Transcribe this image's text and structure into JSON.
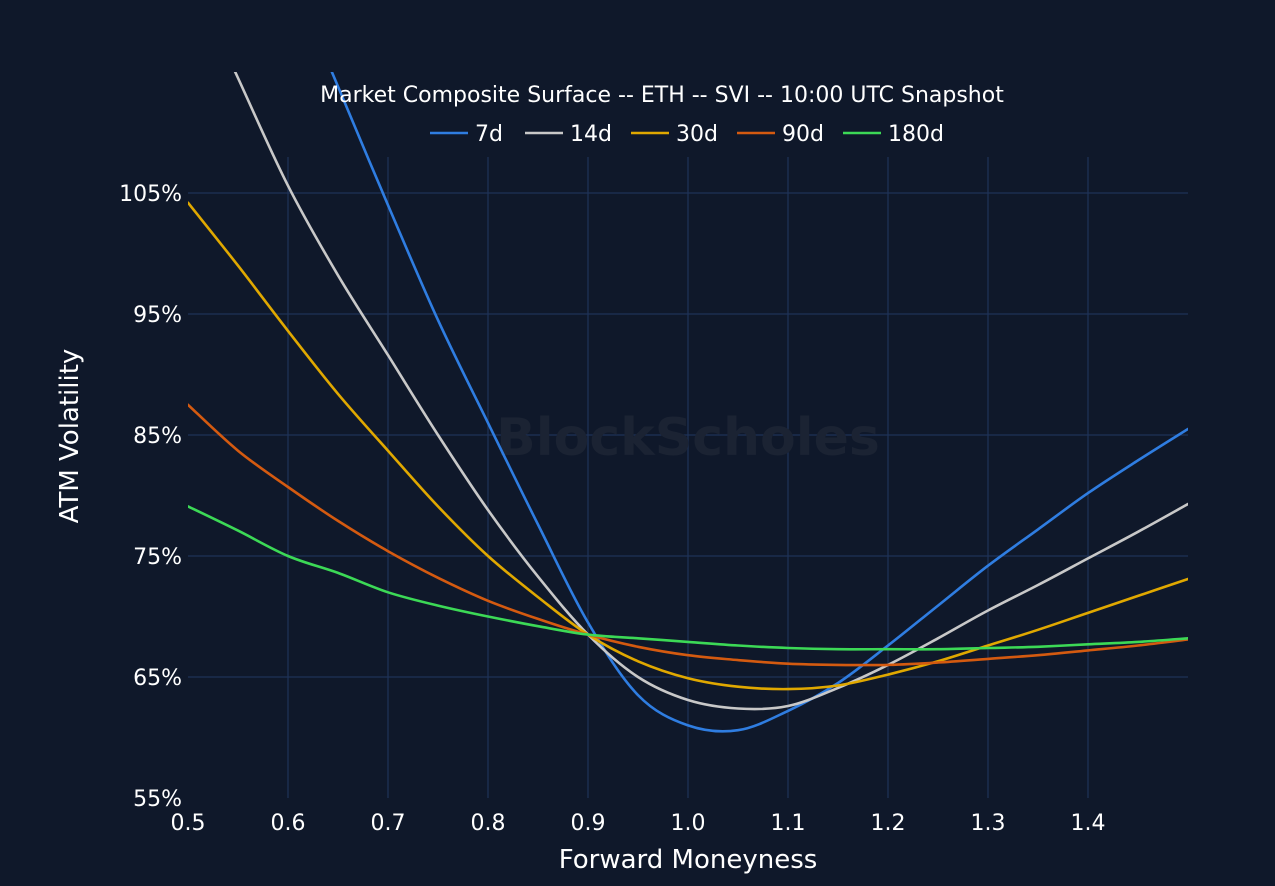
{
  "chart_data": {
    "type": "line",
    "title": "Market Composite Surface -- ETH -- SVI -- 10:00 UTC Snapshot",
    "xlabel": "Forward Moneyness",
    "ylabel": "ATM Volatility",
    "watermark": "BlockScholes",
    "xlim": [
      0.5,
      1.5
    ],
    "ylim": [
      55,
      115
    ],
    "x_ticks": [
      0.5,
      0.6,
      0.7,
      0.8,
      0.9,
      1.0,
      1.1,
      1.2,
      1.3,
      1.4
    ],
    "x_tick_labels": [
      "0.5",
      "0.6",
      "0.7",
      "0.8",
      "0.9",
      "1.0",
      "1.1",
      "1.2",
      "1.3",
      "1.4"
    ],
    "y_ticks": [
      55,
      65,
      75,
      85,
      95,
      105
    ],
    "y_tick_labels": [
      "55%",
      "65%",
      "75%",
      "85%",
      "95%",
      "105%"
    ],
    "grid": true,
    "legend_position": "top-center",
    "x": [
      0.5,
      0.55,
      0.6,
      0.65,
      0.7,
      0.75,
      0.8,
      0.85,
      0.9,
      0.95,
      1.0,
      1.05,
      1.1,
      1.15,
      1.2,
      1.25,
      1.3,
      1.35,
      1.4,
      1.45,
      1.5
    ],
    "series": [
      {
        "name": "7d",
        "color": "#2f7de1",
        "values": [
          null,
          null,
          null,
          113.8,
          104.0,
          94.5,
          86.0,
          77.6,
          69.5,
          63.5,
          61.0,
          60.6,
          62.2,
          64.5,
          67.6,
          70.9,
          74.2,
          77.2,
          80.2,
          82.9,
          85.5
        ]
      },
      {
        "name": "14d",
        "color": "#c8c8c8",
        "values": [
          null,
          114.5,
          105.6,
          98.2,
          91.6,
          85.0,
          78.8,
          73.3,
          68.5,
          65.0,
          63.1,
          62.4,
          62.6,
          64.1,
          66.0,
          68.2,
          70.5,
          72.6,
          74.8,
          77.0,
          79.3
        ]
      },
      {
        "name": "30d",
        "color": "#e0a800",
        "values": [
          104.2,
          99.0,
          93.6,
          88.4,
          83.7,
          79.1,
          75.0,
          71.6,
          68.5,
          66.3,
          64.9,
          64.2,
          64.0,
          64.3,
          65.2,
          66.3,
          67.6,
          68.9,
          70.3,
          71.7,
          73.1
        ]
      },
      {
        "name": "90d",
        "color": "#d45a10",
        "values": [
          87.5,
          83.7,
          80.7,
          77.9,
          75.4,
          73.2,
          71.3,
          69.8,
          68.5,
          67.5,
          66.8,
          66.4,
          66.1,
          66.0,
          66.0,
          66.2,
          66.5,
          66.8,
          67.2,
          67.6,
          68.1
        ]
      },
      {
        "name": "180d",
        "color": "#3cd956",
        "values": [
          79.1,
          77.1,
          75.0,
          73.6,
          72.0,
          70.9,
          70.0,
          69.2,
          68.5,
          68.2,
          67.9,
          67.6,
          67.4,
          67.3,
          67.3,
          67.3,
          67.4,
          67.5,
          67.7,
          67.9,
          68.2
        ]
      }
    ]
  }
}
